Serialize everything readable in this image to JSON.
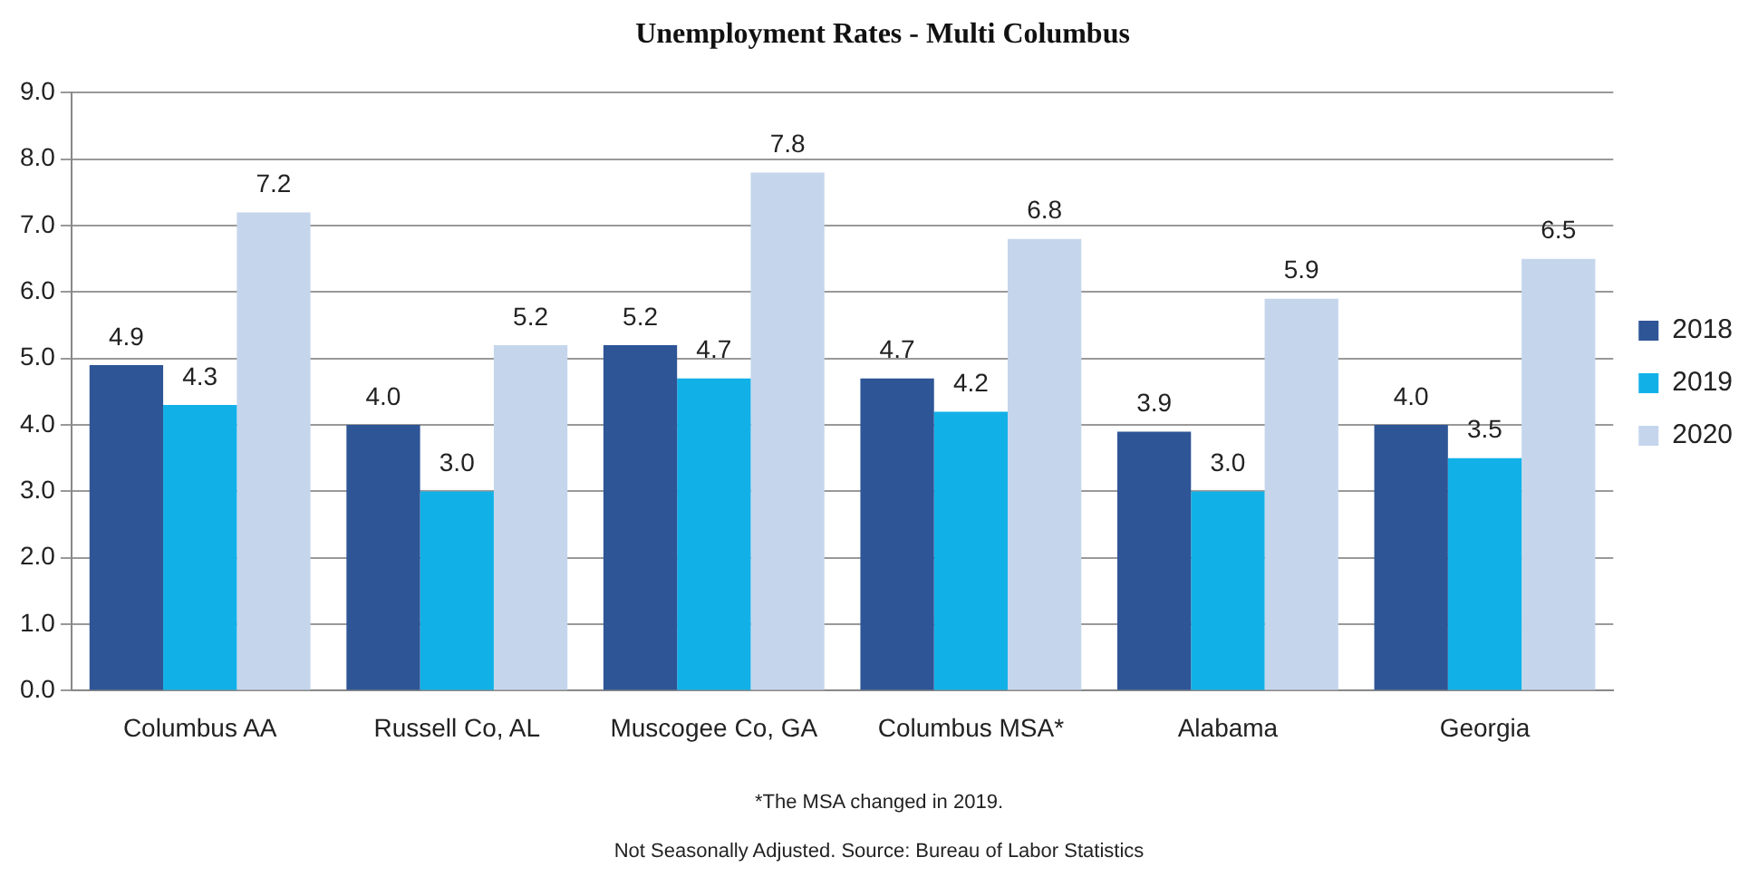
{
  "chart_data": {
    "type": "bar",
    "title": "Unemployment Rates - Multi Columbus",
    "categories": [
      "Columbus AA",
      "Russell Co, AL",
      "Muscogee Co, GA",
      "Columbus MSA*",
      "Alabama",
      "Georgia"
    ],
    "series": [
      {
        "name": "2018",
        "color": "#2e5596",
        "values": [
          4.9,
          4.0,
          5.2,
          4.7,
          3.9,
          4.0
        ],
        "value_labels": [
          "4.9",
          "4.0",
          "5.2",
          "4.7",
          "3.9",
          "4.0"
        ]
      },
      {
        "name": "2019",
        "color": "#11b1e8",
        "values": [
          4.3,
          3.0,
          4.7,
          4.2,
          3.0,
          3.5
        ],
        "value_labels": [
          "4.3",
          "3.0",
          "4.7",
          "4.2",
          "3.0",
          "3.5"
        ]
      },
      {
        "name": "2020",
        "color": "#c5d6ec",
        "values": [
          7.2,
          5.2,
          7.8,
          6.8,
          5.9,
          6.5
        ],
        "value_labels": [
          "7.2",
          "5.2",
          "7.8",
          "6.8",
          "5.9",
          "6.5"
        ]
      }
    ],
    "ylim": [
      0,
      9
    ],
    "yticks": [
      {
        "value": 0,
        "label": "0.0"
      },
      {
        "value": 1,
        "label": "1.0"
      },
      {
        "value": 2,
        "label": "2.0"
      },
      {
        "value": 3,
        "label": "3.0"
      },
      {
        "value": 4,
        "label": "4.0"
      },
      {
        "value": 5,
        "label": "5.0"
      },
      {
        "value": 6,
        "label": "6.0"
      },
      {
        "value": 7,
        "label": "7.0"
      },
      {
        "value": 8,
        "label": "8.0"
      },
      {
        "value": 9,
        "label": "9.0"
      }
    ],
    "grid": "y",
    "legend": "right",
    "annotations": [
      "*The MSA changed in 2019.",
      "Not Seasonally Adjusted. Source: Bureau of Labor Statistics"
    ]
  }
}
